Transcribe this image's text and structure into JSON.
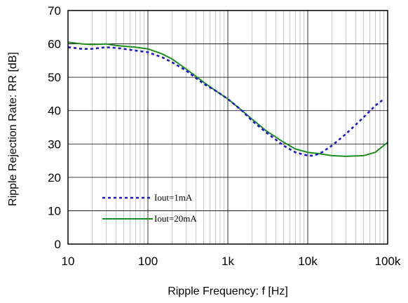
{
  "chart_data": {
    "type": "line",
    "xlabel": "Ripple Frequency: f [Hz]",
    "ylabel": "Ripple Rejection Rate: RR [dB]",
    "x_scale": "log",
    "xlim": [
      10,
      100000
    ],
    "ylim": [
      0,
      70
    ],
    "y_ticks": [
      "0",
      "10",
      "20",
      "30",
      "40",
      "50",
      "60",
      "70"
    ],
    "x_tick_values": [
      10,
      100,
      1000,
      10000,
      100000
    ],
    "x_ticks": [
      "10",
      "100",
      "1k",
      "10k",
      "100k"
    ],
    "grid": true,
    "legend_position": "bottom-left",
    "series": [
      {
        "name": "Iout=1mA",
        "color": "#1a1acc",
        "style": "dashed",
        "x": [
          10,
          15,
          20,
          30,
          40,
          50,
          70,
          100,
          150,
          200,
          300,
          500,
          700,
          1000,
          1500,
          2000,
          3000,
          5000,
          7000,
          10000,
          12000,
          15000,
          20000,
          30000,
          50000,
          70000,
          90000
        ],
        "y": [
          59,
          58.5,
          58.5,
          59,
          58.8,
          58.5,
          58,
          57.5,
          56,
          54.5,
          52,
          48,
          46,
          43.5,
          40,
          37,
          33.5,
          29.5,
          27.5,
          26.5,
          26.5,
          27.5,
          29.5,
          33,
          38,
          41.5,
          43.5
        ]
      },
      {
        "name": "Iout=20mA",
        "color": "#1e8c1e",
        "style": "solid",
        "x": [
          10,
          15,
          20,
          30,
          40,
          50,
          70,
          100,
          150,
          200,
          300,
          500,
          700,
          1000,
          1500,
          2000,
          3000,
          5000,
          7000,
          10000,
          15000,
          20000,
          30000,
          50000,
          70000,
          100000
        ],
        "y": [
          60.5,
          60,
          59.8,
          60,
          59.5,
          59.3,
          59,
          58.5,
          57,
          55.5,
          52.5,
          48.5,
          46,
          43.5,
          40,
          37.5,
          34,
          30.5,
          28.5,
          27.5,
          27,
          26.5,
          26.3,
          26.5,
          27.5,
          30.5
        ]
      }
    ]
  }
}
